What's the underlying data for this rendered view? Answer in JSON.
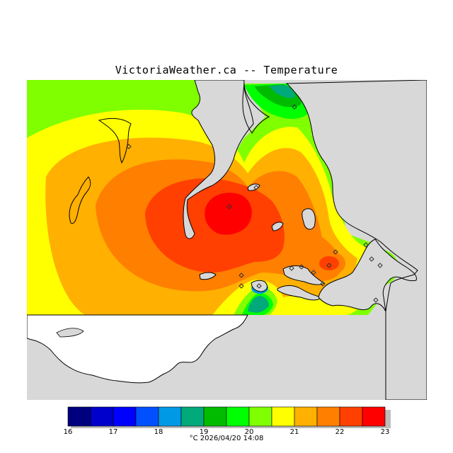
{
  "title": "VictoriaWeather.ca -- Temperature",
  "footer": {
    "unit": "°C",
    "timestamp": "2026/04/20 14:08"
  },
  "legend": {
    "ticks": [
      "16",
      "17",
      "18",
      "19",
      "20",
      "21",
      "22",
      "23"
    ],
    "colors": [
      "#00007f",
      "#0000cc",
      "#0000ff",
      "#0050ff",
      "#0099e6",
      "#00aa7a",
      "#00bb00",
      "#00ff00",
      "#7fff00",
      "#ffff00",
      "#ffb000",
      "#ff7f00",
      "#ff4000",
      "#ff0000"
    ]
  },
  "map": {
    "sea_color": "#d8d8d8",
    "land_color": "#ffffff",
    "coast_color": "#000000",
    "station_marker": "diamond"
  }
}
